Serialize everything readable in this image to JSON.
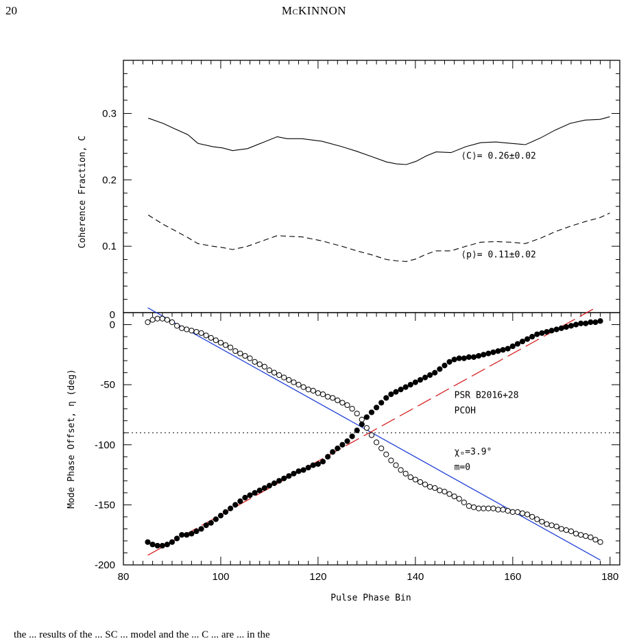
{
  "page": {
    "page_number": "20",
    "running_head": "McKINNON",
    "footer_text": "the ... results of the ... SC ... model and the ... C ... are ... in the"
  },
  "chart_data": [
    {
      "type": "line",
      "panel": "top",
      "ylabel": "Coherence Fraction, C",
      "xlim": [
        80,
        180
      ],
      "ylim": [
        0,
        0.38
      ],
      "yticks": [
        0.1,
        0.2,
        0.3
      ],
      "ytick_labels": [
        "0.1",
        "0.2",
        "0.3"
      ],
      "series": [
        {
          "style": "solid",
          "x": [
            85,
            88,
            90,
            93,
            95,
            98,
            100,
            102,
            105,
            108,
            111,
            113,
            116,
            120,
            124,
            127,
            130,
            133,
            135,
            137,
            139,
            141,
            143,
            146,
            149,
            152,
            155,
            158,
            161,
            164,
            167,
            170,
            173,
            176,
            178
          ],
          "y": [
            0.293,
            0.285,
            0.278,
            0.268,
            0.255,
            0.25,
            0.248,
            0.244,
            0.247,
            0.256,
            0.265,
            0.262,
            0.262,
            0.258,
            0.25,
            0.243,
            0.235,
            0.227,
            0.224,
            0.223,
            0.228,
            0.236,
            0.242,
            0.241,
            0.25,
            0.256,
            0.257,
            0.255,
            0.253,
            0.263,
            0.275,
            0.285,
            0.29,
            0.291,
            0.295
          ]
        },
        {
          "style": "dashed",
          "x": [
            85,
            88,
            90,
            93,
            95,
            98,
            100,
            102,
            105,
            108,
            111,
            113,
            116,
            120,
            124,
            127,
            130,
            133,
            135,
            137,
            139,
            141,
            143,
            146,
            149,
            152,
            155,
            158,
            161,
            164,
            167,
            170,
            173,
            176,
            178
          ],
          "y": [
            0.147,
            0.133,
            0.125,
            0.113,
            0.104,
            0.1,
            0.098,
            0.095,
            0.1,
            0.108,
            0.116,
            0.115,
            0.114,
            0.108,
            0.1,
            0.093,
            0.087,
            0.08,
            0.078,
            0.077,
            0.081,
            0.088,
            0.093,
            0.093,
            0.1,
            0.106,
            0.107,
            0.106,
            0.104,
            0.112,
            0.122,
            0.13,
            0.137,
            0.143,
            0.15
          ]
        }
      ],
      "annotations": [
        {
          "text": "⟨C⟩= 0.26±0.02",
          "x": 148,
          "y": 0.232
        },
        {
          "text": "⟨p⟩= 0.11±0.02",
          "x": 148,
          "y": 0.083
        }
      ]
    },
    {
      "type": "scatter",
      "panel": "bottom",
      "xlabel": "Pulse Phase Bin",
      "ylabel": "Mode Phase Offset, η (deg)",
      "xlim": [
        80,
        182
      ],
      "ylim": [
        -200,
        10
      ],
      "xticks": [
        80,
        100,
        120,
        140,
        160,
        180
      ],
      "xtick_labels": [
        "80",
        "100",
        "120",
        "140",
        "160",
        "180"
      ],
      "yticks": [
        0,
        -50,
        -100,
        -150,
        -200
      ],
      "ytick_labels": [
        "0",
        "-50",
        "-100",
        "-150",
        "-200"
      ],
      "top_zero_label": "0",
      "reference_line_y": -90,
      "fit_lines": [
        {
          "color": "#1f3fd6",
          "style": "solid",
          "x": [
            85,
            178
          ],
          "y": [
            14,
            -196
          ]
        },
        {
          "color": "#d62020",
          "style": "dashed",
          "x": [
            85,
            177
          ],
          "y": [
            -192,
            14
          ]
        }
      ],
      "series": [
        {
          "marker": "open-circle",
          "x": [
            85,
            86,
            87,
            88,
            89,
            90,
            91,
            92,
            93,
            94,
            95,
            96,
            97,
            98,
            99,
            100,
            101,
            102,
            103,
            104,
            105,
            106,
            107,
            108,
            109,
            110,
            111,
            112,
            113,
            114,
            115,
            116,
            117,
            118,
            119,
            120,
            121,
            122,
            123,
            124,
            125,
            126,
            127,
            128,
            129,
            130,
            131,
            132,
            133,
            134,
            135,
            136,
            137,
            138,
            139,
            140,
            141,
            142,
            143,
            144,
            145,
            146,
            147,
            148,
            149,
            150,
            151,
            152,
            153,
            154,
            155,
            156,
            157,
            158,
            159,
            160,
            161,
            162,
            163,
            164,
            165,
            166,
            167,
            168,
            169,
            170,
            171,
            172,
            173,
            174,
            175,
            176,
            177,
            178
          ],
          "y": [
            2,
            4,
            5,
            5,
            4,
            2,
            -1,
            -3,
            -4,
            -5,
            -6,
            -7,
            -9,
            -11,
            -13,
            -15,
            -17,
            -19,
            -22,
            -24,
            -26,
            -28,
            -31,
            -33,
            -35,
            -38,
            -40,
            -42,
            -44,
            -46,
            -48,
            -50,
            -52,
            -54,
            -55,
            -57,
            -58,
            -60,
            -61,
            -63,
            -65,
            -67,
            -70,
            -74,
            -79,
            -86,
            -92,
            -98,
            -103,
            -108,
            -113,
            -117,
            -121,
            -124,
            -127,
            -129,
            -131,
            -133,
            -135,
            -136,
            -138,
            -139,
            -141,
            -143,
            -145,
            -148,
            -151,
            -152,
            -153,
            -153,
            -153,
            -153,
            -154,
            -154,
            -155,
            -156,
            -156,
            -157,
            -158,
            -160,
            -162,
            -164,
            -166,
            -167,
            -168,
            -170,
            -171,
            -172,
            -174,
            -175,
            -176,
            -177,
            -179,
            -181
          ]
        },
        {
          "marker": "filled-circle",
          "x": [
            85,
            86,
            87,
            88,
            89,
            90,
            91,
            92,
            93,
            94,
            95,
            96,
            97,
            98,
            99,
            100,
            101,
            102,
            103,
            104,
            105,
            106,
            107,
            108,
            109,
            110,
            111,
            112,
            113,
            114,
            115,
            116,
            117,
            118,
            119,
            120,
            121,
            122,
            123,
            124,
            125,
            126,
            127,
            128,
            129,
            130,
            131,
            132,
            133,
            134,
            135,
            136,
            137,
            138,
            139,
            140,
            141,
            142,
            143,
            144,
            145,
            146,
            147,
            148,
            149,
            150,
            151,
            152,
            153,
            154,
            155,
            156,
            157,
            158,
            159,
            160,
            161,
            162,
            163,
            164,
            165,
            166,
            167,
            168,
            169,
            170,
            171,
            172,
            173,
            174,
            175,
            176,
            177,
            178
          ],
          "y": [
            -181,
            -183,
            -184,
            -184,
            -183,
            -181,
            -178,
            -175,
            -175,
            -174,
            -172,
            -170,
            -167,
            -165,
            -162,
            -159,
            -156,
            -153,
            -150,
            -147,
            -144,
            -142,
            -140,
            -138,
            -136,
            -134,
            -132,
            -130,
            -128,
            -126,
            -124,
            -122,
            -121,
            -119,
            -117,
            -116,
            -114,
            -110,
            -106,
            -103,
            -100,
            -97,
            -93,
            -88,
            -83,
            -77,
            -73,
            -69,
            -65,
            -61,
            -58,
            -56,
            -54,
            -52,
            -50,
            -48,
            -46,
            -44,
            -42,
            -40,
            -37,
            -34,
            -31,
            -29,
            -28,
            -28,
            -27,
            -27,
            -26,
            -25,
            -24,
            -23,
            -22,
            -21,
            -20,
            -18,
            -16,
            -14,
            -12,
            -10,
            -8,
            -7,
            -6,
            -5,
            -4,
            -3,
            -2,
            -1,
            0,
            1,
            1,
            2,
            2,
            3
          ]
        }
      ],
      "annotations": [
        {
          "text": "PSR B2016+28",
          "x": 148,
          "y": -61
        },
        {
          "text": "PCOH",
          "x": 148,
          "y": -74
        },
        {
          "text": "χₒ=3.9°",
          "x": 148,
          "y": -108
        },
        {
          "text": "m=0",
          "x": 148,
          "y": -121
        }
      ]
    }
  ]
}
